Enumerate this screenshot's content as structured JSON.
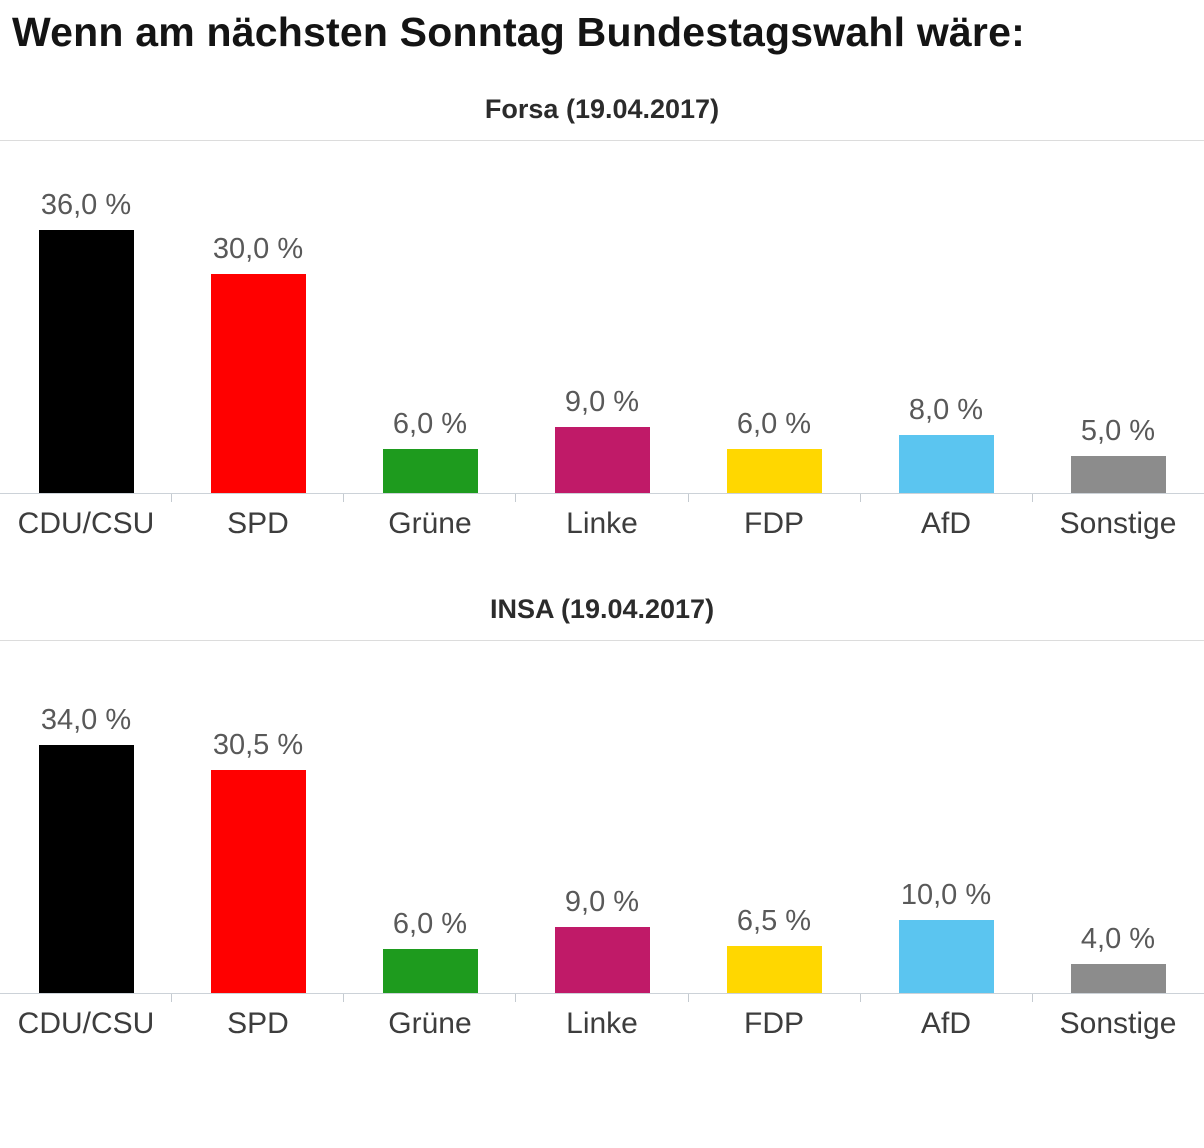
{
  "page": {
    "title": "Wenn am nächsten Sonntag Bundestagswahl wäre:"
  },
  "chart_data": [
    {
      "type": "bar",
      "title": "Forsa (19.04.2017)",
      "categories": [
        "CDU/CSU",
        "SPD",
        "Grüne",
        "Linke",
        "FDP",
        "AfD",
        "Sonstige"
      ],
      "values": [
        36.0,
        30.0,
        6.0,
        9.0,
        6.0,
        8.0,
        5.0
      ],
      "value_labels": [
        "36,0 %",
        "30,0 %",
        "6,0 %",
        "9,0 %",
        "6,0 %",
        "8,0 %",
        "5,0 %"
      ],
      "colors": [
        "#000000",
        "#ff0000",
        "#1e9b1e",
        "#c01a68",
        "#ffd700",
        "#5bc5f0",
        "#8c8c8c"
      ],
      "xlabel": "",
      "ylabel": "",
      "ylim": [
        0,
        40
      ],
      "grid": false,
      "legend": false
    },
    {
      "type": "bar",
      "title": "INSA (19.04.2017)",
      "categories": [
        "CDU/CSU",
        "SPD",
        "Grüne",
        "Linke",
        "FDP",
        "AfD",
        "Sonstige"
      ],
      "values": [
        34.0,
        30.5,
        6.0,
        9.0,
        6.5,
        10.0,
        4.0
      ],
      "value_labels": [
        "34,0 %",
        "30,5 %",
        "6,0 %",
        "9,0 %",
        "6,5 %",
        "10,0 %",
        "4,0 %"
      ],
      "colors": [
        "#000000",
        "#ff0000",
        "#1e9b1e",
        "#c01a68",
        "#ffd700",
        "#5bc5f0",
        "#8c8c8c"
      ],
      "xlabel": "",
      "ylabel": "",
      "ylim": [
        0,
        40
      ],
      "grid": false,
      "legend": false
    }
  ]
}
